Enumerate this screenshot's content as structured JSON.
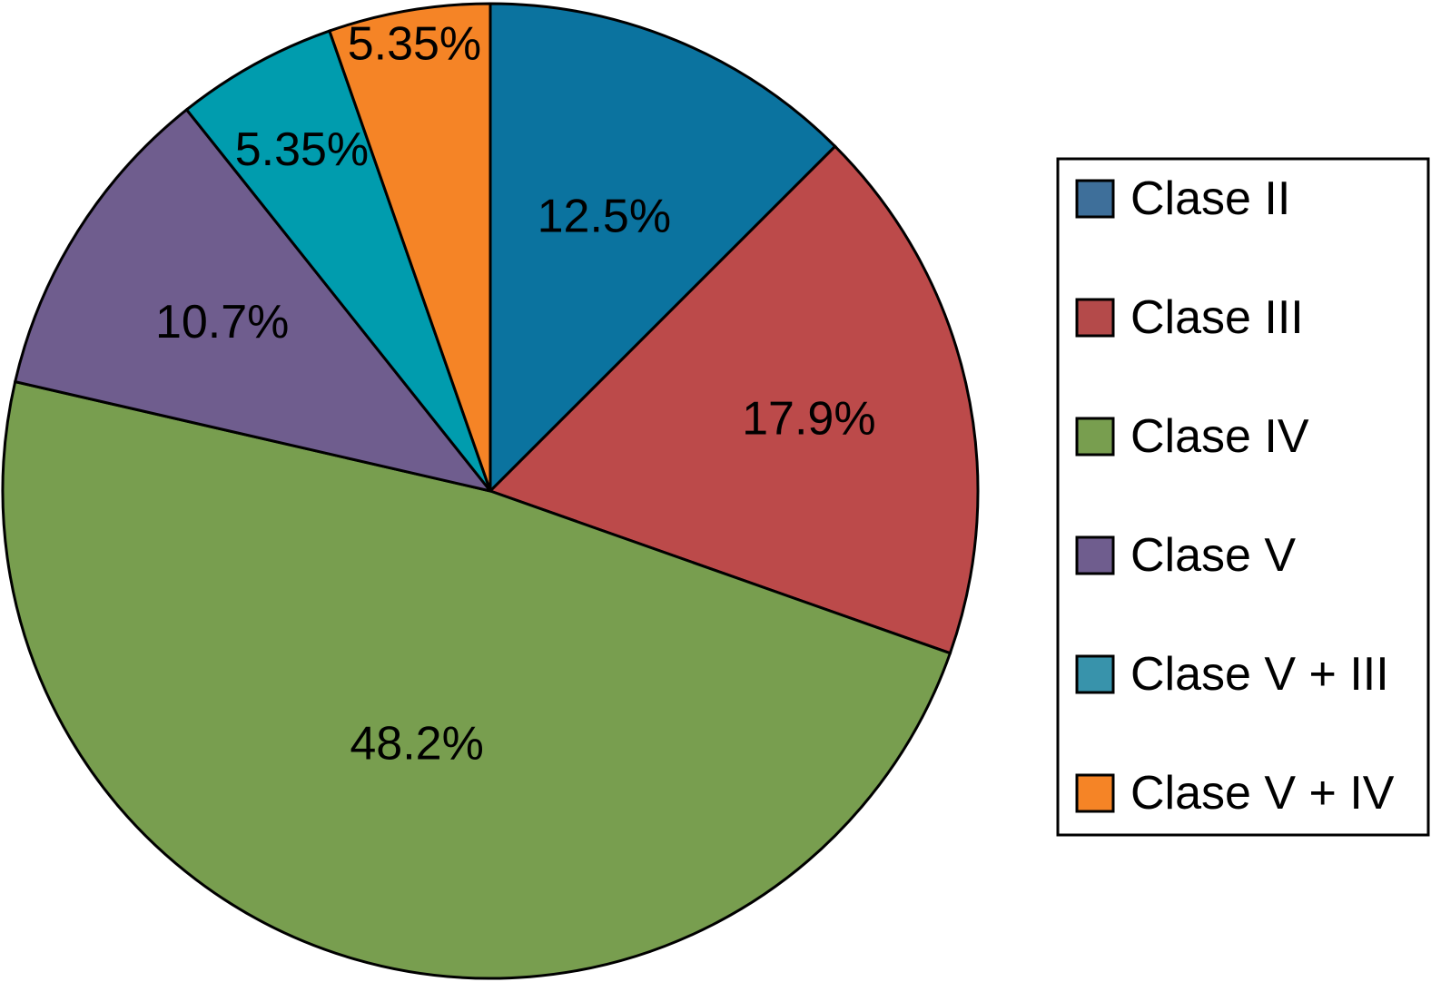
{
  "chart_data": {
    "type": "pie",
    "title": "",
    "legend_position": "right",
    "slices": [
      {
        "category": "Clase II",
        "value": 12.5,
        "label": "12.5%",
        "color": "#0b739f"
      },
      {
        "category": "Clase III",
        "value": 17.9,
        "label": "17.9%",
        "color": "#bc4a4a"
      },
      {
        "category": "Clase IV",
        "value": 48.2,
        "label": "48.2%",
        "color": "#789e4f"
      },
      {
        "category": "Clase V",
        "value": 10.7,
        "label": "10.7%",
        "color": "#6f5d8e"
      },
      {
        "category": "Clase V + III",
        "value": 5.35,
        "label": "5.35%",
        "color": "#009cae"
      },
      {
        "category": "Clase V + IV",
        "value": 5.35,
        "label": "5.35%",
        "color": "#f58426"
      }
    ],
    "legend": [
      {
        "label": "Clase II",
        "color": "#3e6f9a"
      },
      {
        "label": "Clase III",
        "color": "#b44a4a"
      },
      {
        "label": "Clase IV",
        "color": "#789e4f"
      },
      {
        "label": "Clase V",
        "color": "#6f5d8e"
      },
      {
        "label": "Clase V + III",
        "color": "#3893ab"
      },
      {
        "label": "Clase V + IV",
        "color": "#f58426"
      }
    ]
  }
}
